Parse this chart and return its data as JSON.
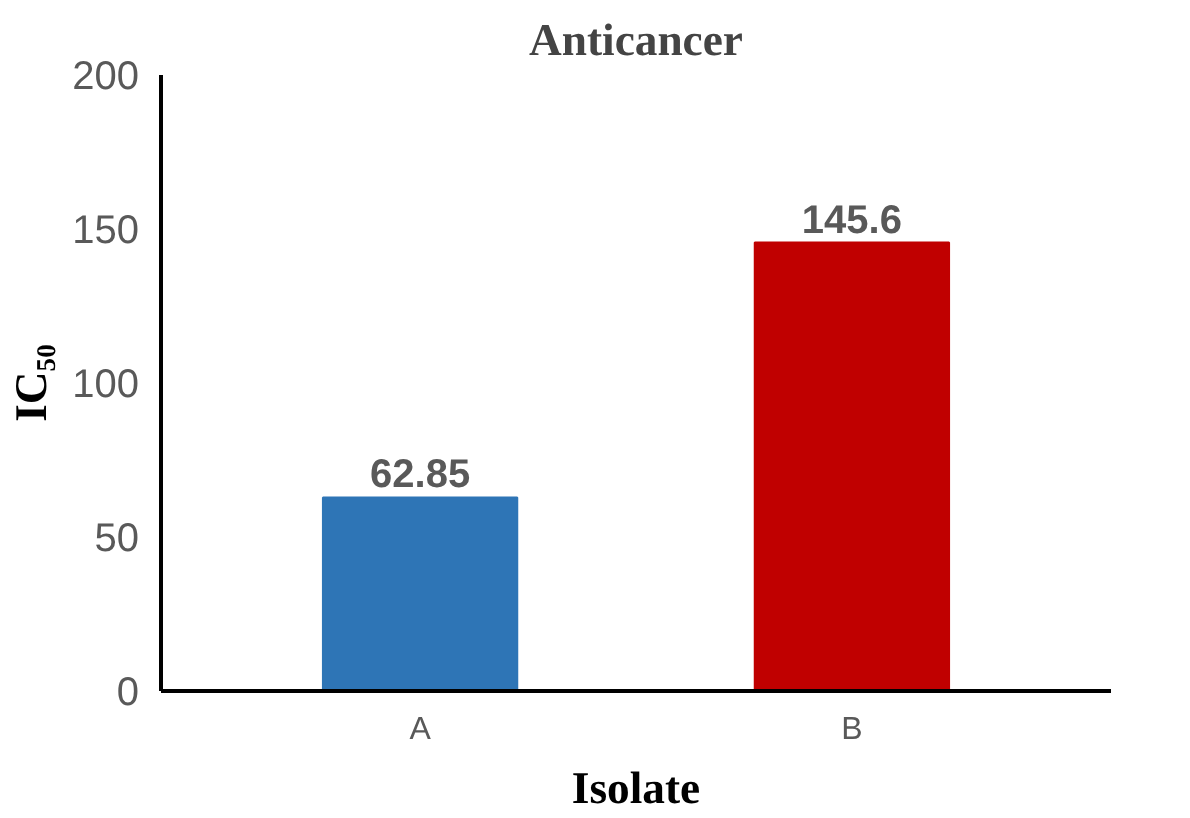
{
  "chart_data": {
    "type": "bar",
    "title": "Anticancer",
    "xlabel": "Isolate",
    "ylabel": "IC₅₀",
    "categories": [
      "A",
      "B"
    ],
    "values": [
      62.85,
      145.6
    ],
    "colors": [
      "#2e75b6",
      "#c00000"
    ],
    "ylim": [
      0,
      200
    ],
    "yticks": [
      0,
      50,
      100,
      150,
      200
    ],
    "grid": false,
    "data_labels": true
  }
}
